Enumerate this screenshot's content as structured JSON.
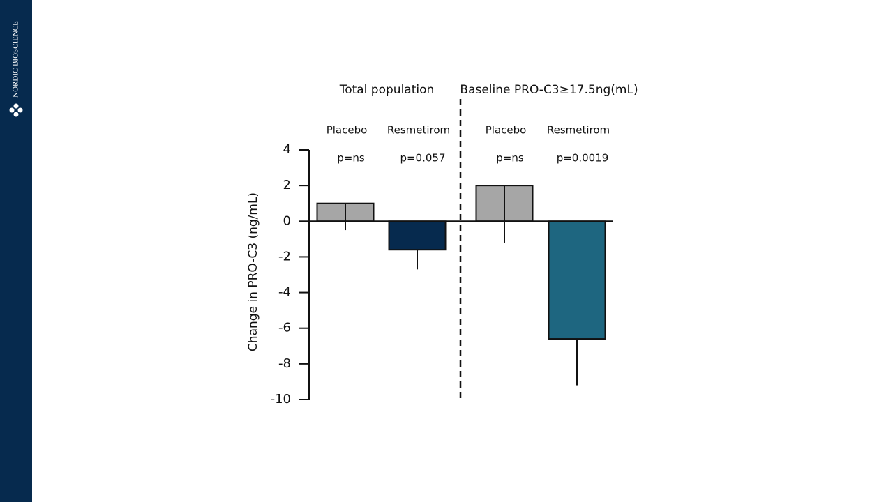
{
  "brand": "NORDIC BIOSCIENCE",
  "chart_data": {
    "type": "bar",
    "y_label": "Change in PRO-C3 (ng/mL)",
    "groups": [
      "Total population",
      "Baseline PRO-C3≥17.5ng(mL)"
    ],
    "categories": [
      "Placebo",
      "Resmetirom",
      "Placebo",
      "Resmetirom"
    ],
    "annotations": [
      "p=ns",
      "p=0.057",
      "p=ns",
      "p=0.0019"
    ],
    "values": [
      1.0,
      -1.6,
      2.0,
      -6.6
    ],
    "errors": [
      1.5,
      1.1,
      3.2,
      2.6
    ],
    "colors": [
      "#a6a6a6",
      "#062a4e",
      "#a6a6a6",
      "#1e6680"
    ],
    "ylim": [
      -10,
      4
    ],
    "yticks": [
      4,
      2,
      0,
      -2,
      -4,
      -6,
      -8,
      -10
    ]
  }
}
